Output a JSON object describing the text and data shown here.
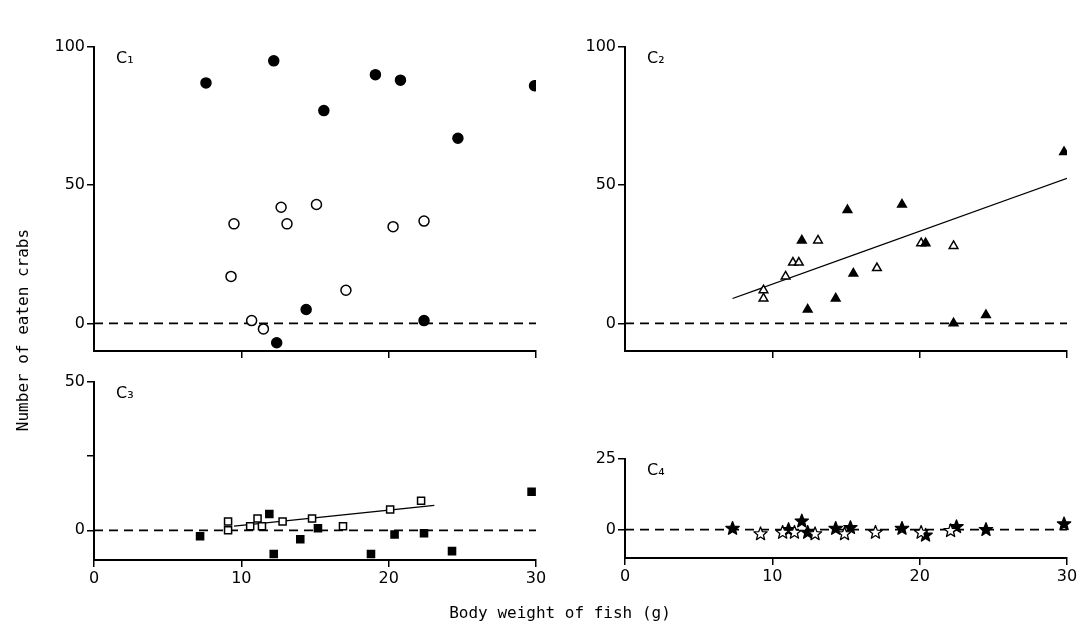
{
  "chart_data": [
    {
      "type": "scatter",
      "title": "C₁",
      "ylabel": "Number of eaten crabs",
      "xlim": [
        0,
        30
      ],
      "ylim": [
        -10,
        100
      ],
      "xticks": [
        {
          "value": 10,
          "label": null
        },
        {
          "value": 20,
          "label": null
        },
        {
          "value": 30,
          "label": null
        }
      ],
      "yticks": [
        0,
        50,
        100
      ],
      "tick_labels": "y",
      "grid": false,
      "legend": false,
      "ref_lines": [
        {
          "axis": "y",
          "value": 0,
          "line_style": "dashed",
          "color": "#000000"
        }
      ],
      "series": [
        {
          "marker": "circle",
          "color": "#000000",
          "x": [
            7.6,
            12.2,
            15.6,
            19.1,
            20.8,
            24.7,
            29.9,
            14.4,
            12.4,
            22.4
          ],
          "values": [
            87,
            95,
            77,
            90,
            88,
            67,
            86,
            5,
            -7,
            1
          ]
        },
        {
          "marker": "circle",
          "color": "#ffffff",
          "x": [
            9.5,
            9.3,
            12.7,
            13.1,
            15.1,
            17.1,
            10.7,
            11.5,
            20.3,
            22.4
          ],
          "values": [
            36,
            17,
            42,
            36,
            43,
            12,
            1,
            -2,
            35,
            37
          ]
        }
      ]
    },
    {
      "type": "scatter",
      "title": "C₂",
      "xlim": [
        0,
        30
      ],
      "ylim": [
        -10,
        100
      ],
      "xticks": [
        {
          "value": 10,
          "label": null
        },
        {
          "value": 20,
          "label": null
        },
        {
          "value": 30,
          "label": null
        }
      ],
      "yticks": [
        0,
        50,
        100
      ],
      "tick_labels": "y",
      "grid": false,
      "legend": false,
      "ref_lines": [
        {
          "axis": "y",
          "value": 0,
          "line_style": "dashed",
          "color": "#000000"
        }
      ],
      "series": [
        {
          "marker": "triangle",
          "color": "#000000",
          "x": [
            12.0,
            12.4,
            15.1,
            15.5,
            14.3,
            18.8,
            20.4,
            22.3,
            24.5,
            29.8
          ],
          "values": [
            30,
            5,
            41,
            18,
            9,
            43,
            29,
            0,
            3,
            62
          ]
        },
        {
          "marker": "triangle",
          "color": "#ffffff",
          "x": [
            9.4,
            9.4,
            10.9,
            11.4,
            11.8,
            13.1,
            17.1,
            20.1,
            22.3
          ],
          "values": [
            12,
            9,
            17,
            22,
            22,
            30,
            20,
            29,
            28
          ]
        },
        {
          "type": "line",
          "marker": "none",
          "color": "#000000",
          "x": [
            7.3,
            30
          ],
          "values": [
            9,
            52.5
          ]
        }
      ]
    },
    {
      "type": "scatter",
      "title": "C₃",
      "xlabel": "Body weight of fish (g)",
      "xlim": [
        0,
        30
      ],
      "ylim": [
        -10,
        50
      ],
      "xticks": [
        0,
        10,
        20,
        30
      ],
      "yticks": [
        0,
        {
          "value": 25,
          "label": null
        },
        50
      ],
      "grid": false,
      "legend": false,
      "ref_lines": [
        {
          "axis": "y",
          "value": 0,
          "line_style": "dashed",
          "color": "#000000"
        }
      ],
      "series": [
        {
          "marker": "square",
          "color": "#000000",
          "x": [
            7.2,
            11.9,
            12.2,
            14.0,
            15.2,
            18.8,
            20.4,
            22.4,
            24.3,
            29.7
          ],
          "values": [
            -2,
            5.5,
            -8,
            -3,
            0.7,
            -8,
            -1.4,
            -1,
            -7,
            13
          ]
        },
        {
          "marker": "square",
          "color": "#ffffff",
          "x": [
            9.1,
            9.1,
            10.6,
            11.1,
            11.4,
            12.8,
            14.8,
            16.9,
            20.1,
            22.2
          ],
          "values": [
            3,
            0,
            1.4,
            4,
            1.4,
            3,
            4,
            1.4,
            7,
            10
          ]
        },
        {
          "type": "line",
          "marker": "none",
          "color": "#000000",
          "x": [
            9.5,
            23.1
          ],
          "values": [
            1.4,
            8.4
          ]
        }
      ]
    },
    {
      "type": "scatter",
      "title": "C₄",
      "xlim": [
        0,
        30
      ],
      "ylim": [
        -10,
        25
      ],
      "xticks": [
        0,
        10,
        20,
        30
      ],
      "yticks": [
        0,
        25
      ],
      "grid": false,
      "legend": false,
      "ref_lines": [
        {
          "axis": "y",
          "value": 0,
          "line_style": "dashed",
          "color": "#000000"
        }
      ],
      "series": [
        {
          "marker": "star",
          "color": "#000000",
          "x": [
            7.3,
            11.1,
            12.0,
            12.4,
            14.3,
            15.3,
            18.8,
            20.4,
            22.5,
            24.5,
            29.8
          ],
          "values": [
            0.4,
            0,
            3,
            -1,
            0.4,
            0.7,
            0.4,
            -2,
            1,
            0,
            2
          ]
        },
        {
          "marker": "star",
          "color": "#ffffff",
          "x": [
            9.2,
            10.7,
            11.5,
            12.9,
            14.9,
            17.0,
            20.1,
            22.1
          ],
          "values": [
            -1.5,
            -1,
            -1,
            -1.5,
            -1.5,
            -1,
            -1,
            -0.4
          ]
        }
      ]
    }
  ]
}
